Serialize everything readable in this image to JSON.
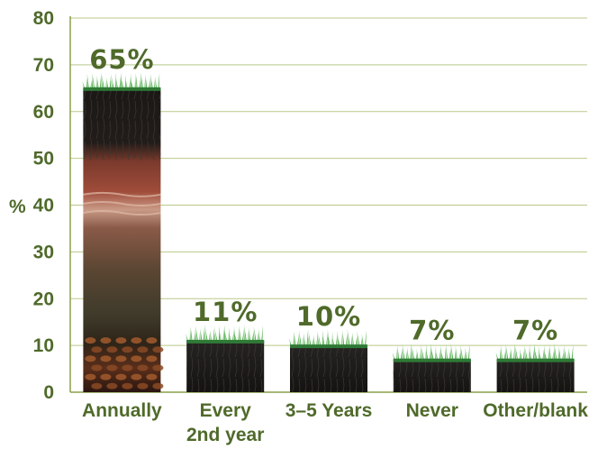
{
  "chart_data": {
    "type": "bar",
    "categories": [
      "Annually",
      "Every 2nd year",
      "3–5 Years",
      "Never",
      "Other/blank"
    ],
    "category_lines": [
      [
        "Annually"
      ],
      [
        "Every",
        "2nd year"
      ],
      [
        "3–5 Years"
      ],
      [
        "Never"
      ],
      [
        "Other/blank"
      ]
    ],
    "values": [
      65,
      11,
      10,
      7,
      7
    ],
    "data_labels": [
      "65%",
      "11%",
      "10%",
      "7%",
      "7%"
    ],
    "ylabel": "%",
    "ylim": [
      0,
      80
    ],
    "yticks": [
      0,
      10,
      20,
      30,
      40,
      50,
      60,
      70,
      80
    ],
    "grid": true,
    "colors": {
      "text": "#4f6a2a",
      "grid": "#b9c98a",
      "axis": "#8aa04a",
      "grass": "#4fae4a",
      "soil_dark": "#1c1a18"
    }
  }
}
